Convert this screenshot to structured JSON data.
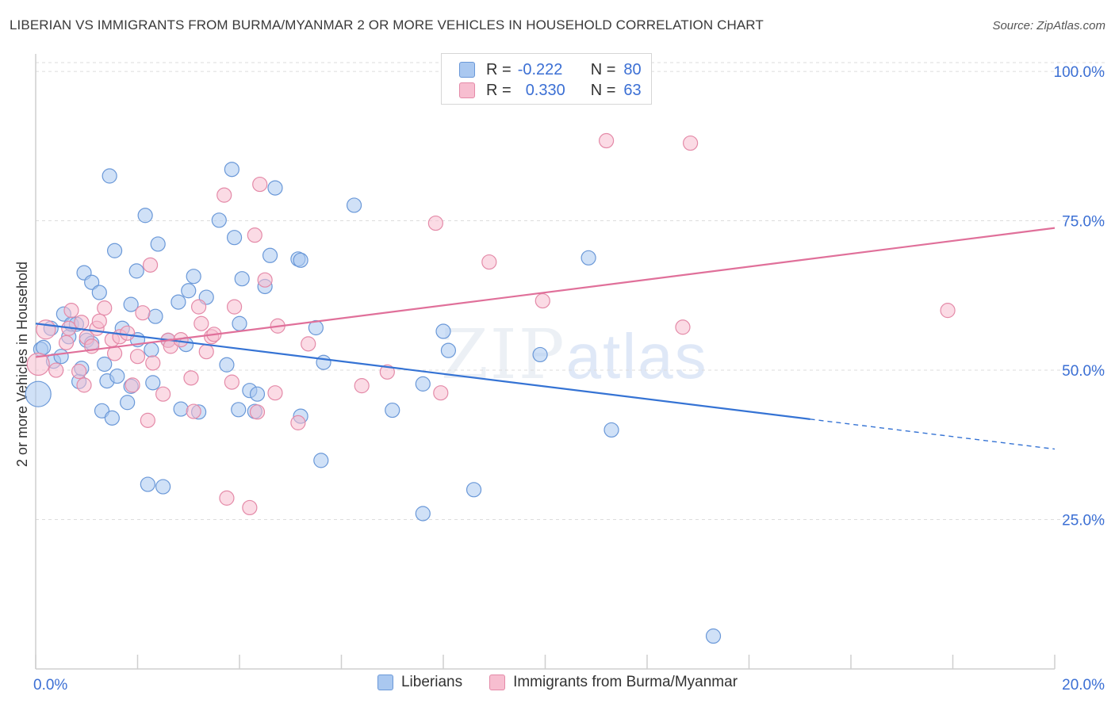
{
  "title": "LIBERIAN VS IMMIGRANTS FROM BURMA/MYANMAR 2 OR MORE VEHICLES IN HOUSEHOLD CORRELATION CHART",
  "source": "Source: ZipAtlas.com",
  "watermark": {
    "zip": "ZIP",
    "atlas": "atlas"
  },
  "stats": {
    "liberians": {
      "r_label": "R =",
      "r_value": "-0.222",
      "n_label": "N =",
      "n_value": "80"
    },
    "burma": {
      "r_label": "R =",
      "r_value": "0.330",
      "n_label": "N =",
      "n_value": "63"
    }
  },
  "legend": {
    "liberians": "Liberians",
    "burma": "Immigrants from Burma/Myanmar"
  },
  "colors": {
    "blue_fill": "#aac8f0",
    "blue_stroke": "#6a98d8",
    "blue_line": "#3573d4",
    "pink_fill": "#f7bed0",
    "pink_stroke": "#e48aa8",
    "pink_line": "#e0709a",
    "axis_text": "#3b6fd4",
    "grid": "#dddddd"
  },
  "chart_data": {
    "type": "scatter",
    "title": "LIBERIAN VS IMMIGRANTS FROM BURMA/MYANMAR 2 OR MORE VEHICLES IN HOUSEHOLD CORRELATION CHART",
    "xlabel": "",
    "ylabel": "2 or more Vehicles in Household",
    "xlim": [
      0,
      20
    ],
    "ylim": [
      0,
      102
    ],
    "x_tick_labels": [
      "0.0%",
      "20.0%"
    ],
    "y_ticks": [
      25,
      50,
      75,
      100
    ],
    "y_tick_labels": [
      "25.0%",
      "50.0%",
      "75.0%",
      "100.0%"
    ],
    "grid": true,
    "legend_position": "bottom-center",
    "series": [
      {
        "name": "Liberians",
        "trend": {
          "x": [
            0,
            15.2
          ],
          "y": [
            57.8,
            41.8
          ],
          "dashed_x": [
            15.2,
            20
          ],
          "dashed_y": [
            41.8,
            36.8
          ]
        },
        "points": [
          [
            0.05,
            46.0,
            16
          ],
          [
            0.1,
            53.5,
            9
          ],
          [
            0.15,
            53.8,
            9
          ],
          [
            0.3,
            57,
            9
          ],
          [
            0.35,
            51.5,
            9
          ],
          [
            0.5,
            52.3,
            9
          ],
          [
            0.55,
            59.4,
            9
          ],
          [
            0.65,
            55.6,
            9
          ],
          [
            0.7,
            57.7,
            9
          ],
          [
            0.8,
            57.7,
            9
          ],
          [
            0.85,
            48.1,
            9
          ],
          [
            0.9,
            50.3,
            9
          ],
          [
            0.95,
            66.3,
            9
          ],
          [
            1.1,
            64.7,
            9
          ],
          [
            1.0,
            55.0,
            9
          ],
          [
            1.1,
            54.5,
            9
          ],
          [
            1.25,
            63.0,
            9
          ],
          [
            1.3,
            43.2,
            9
          ],
          [
            1.35,
            51.0,
            9
          ],
          [
            1.4,
            48.2,
            9
          ],
          [
            1.45,
            82.5,
            9
          ],
          [
            1.5,
            42.0,
            9
          ],
          [
            1.55,
            70.0,
            9
          ],
          [
            1.6,
            49.0,
            9
          ],
          [
            1.7,
            57.0,
            9
          ],
          [
            1.8,
            44.6,
            9
          ],
          [
            1.87,
            47.3,
            9
          ],
          [
            1.87,
            61.0,
            9
          ],
          [
            1.98,
            66.6,
            9
          ],
          [
            2.0,
            55.1,
            9
          ],
          [
            2.15,
            75.9,
            9
          ],
          [
            2.2,
            30.9,
            9
          ],
          [
            2.27,
            53.4,
            9
          ],
          [
            2.3,
            47.9,
            9
          ],
          [
            2.35,
            59.0,
            9
          ],
          [
            2.4,
            71.1,
            9
          ],
          [
            2.5,
            30.5,
            9
          ],
          [
            2.6,
            55.0,
            9
          ],
          [
            2.8,
            61.4,
            9
          ],
          [
            2.85,
            43.5,
            9
          ],
          [
            2.95,
            54.3,
            9
          ],
          [
            3.0,
            63.3,
            9
          ],
          [
            3.1,
            65.7,
            9
          ],
          [
            3.2,
            43.0,
            9
          ],
          [
            3.35,
            62.2,
            9
          ],
          [
            3.6,
            75.1,
            9
          ],
          [
            3.75,
            50.9,
            9
          ],
          [
            3.85,
            83.6,
            9
          ],
          [
            3.9,
            72.2,
            9
          ],
          [
            3.98,
            43.4,
            9
          ],
          [
            4.0,
            57.8,
            9
          ],
          [
            4.05,
            65.3,
            9
          ],
          [
            4.2,
            46.6,
            9
          ],
          [
            4.3,
            43.1,
            9
          ],
          [
            4.35,
            46.0,
            9
          ],
          [
            4.5,
            64.0,
            9
          ],
          [
            4.6,
            69.2,
            9
          ],
          [
            4.7,
            80.5,
            9
          ],
          [
            5.15,
            68.6,
            9
          ],
          [
            5.2,
            68.4,
            9
          ],
          [
            5.2,
            42.3,
            9
          ],
          [
            5.5,
            57.1,
            9
          ],
          [
            5.6,
            34.9,
            9
          ],
          [
            5.65,
            51.3,
            9
          ],
          [
            6.25,
            77.6,
            9
          ],
          [
            7.0,
            43.3,
            9
          ],
          [
            7.6,
            26.0,
            9
          ],
          [
            7.6,
            47.7,
            9
          ],
          [
            8.0,
            56.5,
            9
          ],
          [
            8.1,
            53.3,
            9
          ],
          [
            8.6,
            30.0,
            9
          ],
          [
            9.9,
            52.6,
            9
          ],
          [
            10.85,
            68.8,
            9
          ],
          [
            11.3,
            40.0,
            9
          ],
          [
            13.3,
            5.5,
            9
          ]
        ]
      },
      {
        "name": "Immigrants from Burma/Myanmar",
        "trend": {
          "x": [
            0,
            20
          ],
          "y": [
            52.2,
            73.8
          ]
        },
        "points": [
          [
            0.05,
            51.0,
            14
          ],
          [
            0.2,
            56.8,
            12
          ],
          [
            0.4,
            50.0,
            9
          ],
          [
            0.6,
            54.6,
            9
          ],
          [
            0.65,
            57.0,
            9
          ],
          [
            0.7,
            60.0,
            9
          ],
          [
            0.85,
            49.8,
            9
          ],
          [
            0.9,
            58.0,
            9
          ],
          [
            0.95,
            47.5,
            9
          ],
          [
            1.0,
            55.5,
            9
          ],
          [
            1.1,
            54.0,
            9
          ],
          [
            1.2,
            57.0,
            9
          ],
          [
            1.25,
            58.2,
            9
          ],
          [
            1.35,
            60.4,
            9
          ],
          [
            1.5,
            55.1,
            9
          ],
          [
            1.55,
            52.8,
            9
          ],
          [
            1.65,
            55.6,
            9
          ],
          [
            1.8,
            56.2,
            9
          ],
          [
            1.9,
            47.5,
            9
          ],
          [
            2.0,
            52.3,
            9
          ],
          [
            2.1,
            59.6,
            9
          ],
          [
            2.2,
            41.6,
            9
          ],
          [
            2.25,
            67.6,
            9
          ],
          [
            2.3,
            51.2,
            9
          ],
          [
            2.5,
            46.0,
            9
          ],
          [
            2.6,
            55.0,
            9
          ],
          [
            2.65,
            54.0,
            9
          ],
          [
            2.85,
            55.1,
            9
          ],
          [
            3.05,
            48.7,
            9
          ],
          [
            3.1,
            43.1,
            9
          ],
          [
            3.2,
            60.6,
            9
          ],
          [
            3.25,
            57.8,
            9
          ],
          [
            3.35,
            53.1,
            9
          ],
          [
            3.45,
            55.6,
            9
          ],
          [
            3.5,
            56.0,
            9
          ],
          [
            3.7,
            79.3,
            9
          ],
          [
            3.75,
            28.6,
            9
          ],
          [
            3.85,
            48.0,
            9
          ],
          [
            3.9,
            60.6,
            9
          ],
          [
            4.2,
            27.0,
            9
          ],
          [
            4.3,
            72.6,
            9
          ],
          [
            4.35,
            43.0,
            9
          ],
          [
            4.4,
            81.1,
            9
          ],
          [
            4.5,
            65.1,
            9
          ],
          [
            4.7,
            46.2,
            9
          ],
          [
            4.75,
            57.4,
            9
          ],
          [
            5.15,
            41.2,
            9
          ],
          [
            5.35,
            54.4,
            9
          ],
          [
            6.4,
            47.4,
            9
          ],
          [
            6.9,
            49.7,
            9
          ],
          [
            7.85,
            74.6,
            9
          ],
          [
            7.95,
            46.2,
            9
          ],
          [
            8.9,
            68.1,
            9
          ],
          [
            9.95,
            61.6,
            9
          ],
          [
            11.2,
            88.4,
            9
          ],
          [
            12.7,
            57.2,
            9
          ],
          [
            12.85,
            88.0,
            9
          ],
          [
            17.9,
            60.0,
            9
          ]
        ]
      }
    ]
  }
}
